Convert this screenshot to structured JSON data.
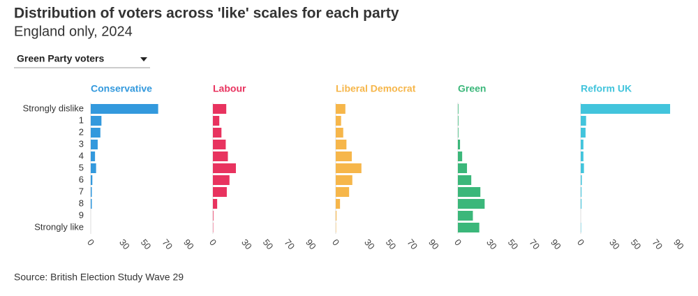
{
  "filter": {
    "selected": "Green Party voters"
  },
  "chart_data": {
    "type": "bar",
    "title": "Distribution of voters across 'like' scales for each party",
    "subtitle": "England only, 2024",
    "source": "Source: British Election Study Wave 29",
    "categories": [
      "Strongly dislike",
      "1",
      "2",
      "3",
      "4",
      "5",
      "6",
      "7",
      "8",
      "9",
      "Strongly like"
    ],
    "xlim": [
      0,
      90
    ],
    "xticks": [
      0,
      30,
      50,
      70,
      90
    ],
    "series": [
      {
        "name": "Conservative",
        "color": "#3399dd",
        "values": [
          63,
          10,
          9,
          6.5,
          4,
          5,
          1.5,
          1,
          1,
          0,
          0
        ]
      },
      {
        "name": "Labour",
        "color": "#e8335f",
        "values": [
          12.5,
          6,
          8,
          12,
          14,
          21.5,
          15.5,
          13,
          4,
          0.5,
          0.3
        ]
      },
      {
        "name": "Liberal Democrat",
        "color": "#f6b64a",
        "values": [
          9,
          5,
          7,
          10,
          15,
          24,
          15.5,
          12.5,
          4,
          0.7,
          0.3
        ]
      },
      {
        "name": "Green",
        "color": "#3bb77a",
        "values": [
          0.5,
          0.5,
          0.5,
          2,
          4,
          8.5,
          12.5,
          21,
          25,
          14,
          20
        ]
      },
      {
        "name": "Reform UK",
        "color": "#42c4dc",
        "values": [
          83.5,
          5,
          4.5,
          2.5,
          2.5,
          3,
          1,
          0.7,
          0.7,
          0,
          0.3
        ]
      }
    ]
  }
}
